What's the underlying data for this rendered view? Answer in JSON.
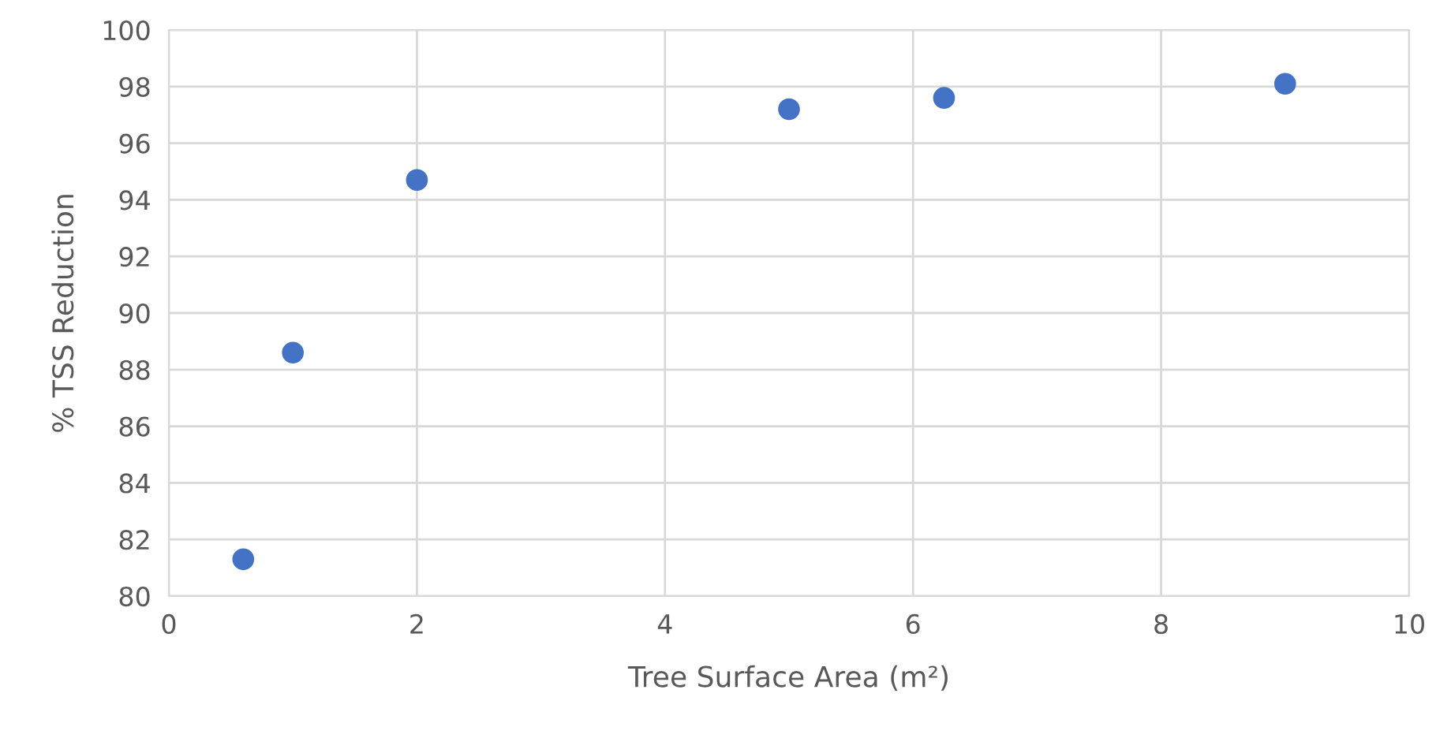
{
  "chart_data": {
    "type": "scatter",
    "xlabel": "Tree Surface Area (m²)",
    "ylabel": "% TSS Reduction",
    "x": [
      0.6,
      1,
      2,
      5,
      6.25,
      9
    ],
    "series": [
      {
        "color": "#4472c4",
        "values": [
          81.3,
          88.6,
          94.7,
          97.2,
          97.6,
          98.1
        ]
      }
    ],
    "xlim": [
      0,
      10
    ],
    "xticks": [
      0,
      2,
      4,
      6,
      8,
      10
    ],
    "ylim": [
      80,
      100
    ],
    "yticks": [
      80,
      82,
      84,
      86,
      88,
      90,
      92,
      94,
      96,
      98,
      100
    ],
    "grid": true,
    "marker": "circle"
  }
}
